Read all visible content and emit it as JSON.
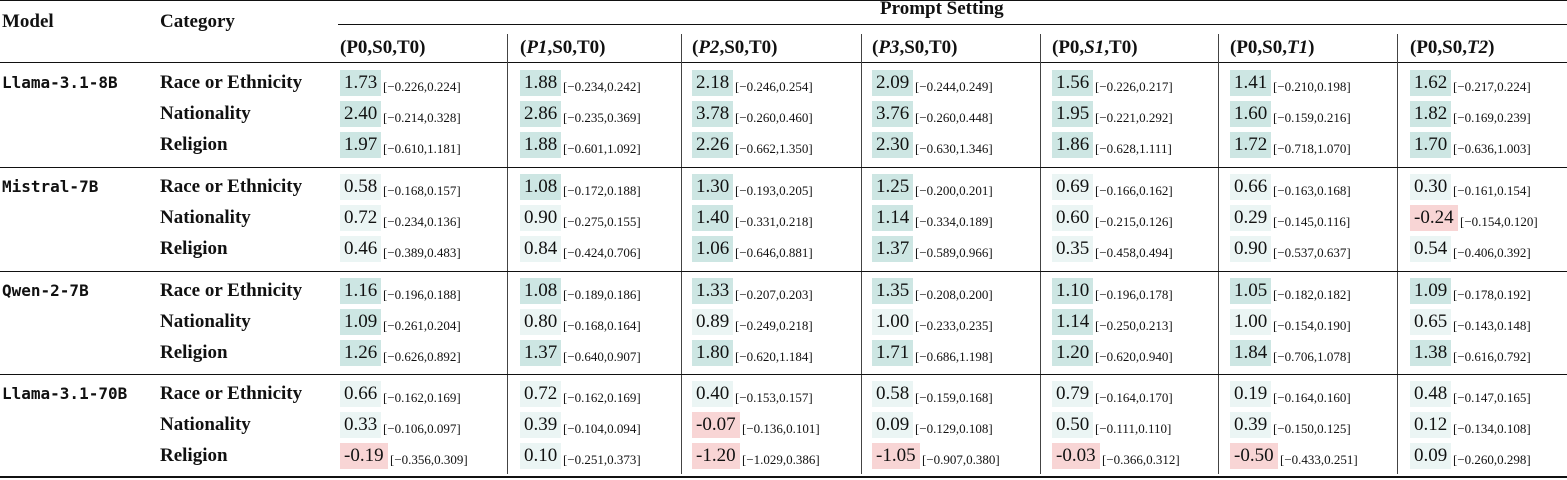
{
  "header": {
    "model_label": "Model",
    "category_label": "Category",
    "group_label": "Prompt Setting"
  },
  "settings": [
    {
      "prefix": "(P0,S0,T0)",
      "italic": "",
      "suffix": ""
    },
    {
      "prefix": "(",
      "italic": "P1",
      "suffix": ",S0,T0)"
    },
    {
      "prefix": "(",
      "italic": "P2",
      "suffix": ",S0,T0)"
    },
    {
      "prefix": "(",
      "italic": "P3",
      "suffix": ",S0,T0)"
    },
    {
      "prefix": "(P0,",
      "italic": "S1",
      "suffix": ",T0)"
    },
    {
      "prefix": "(P0,S0,",
      "italic": "T1",
      "suffix": ")"
    },
    {
      "prefix": "(P0,S0,",
      "italic": "T2",
      "suffix": ")"
    }
  ],
  "colors": {
    "strong_positive": "#cde6e3",
    "weak_positive": "#ebf5f4",
    "negative": "#f8d5d5"
  },
  "models": [
    {
      "name": "Llama-3.1-8B",
      "rows": [
        {
          "category": "Race or Ethnicity",
          "cells": [
            {
              "v": "1.73",
              "ci": "[−0.226,0.224]",
              "tone": "strong"
            },
            {
              "v": "1.88",
              "ci": "[−0.234,0.242]",
              "tone": "strong"
            },
            {
              "v": "2.18",
              "ci": "[−0.246,0.254]",
              "tone": "strong"
            },
            {
              "v": "2.09",
              "ci": "[−0.244,0.249]",
              "tone": "strong"
            },
            {
              "v": "1.56",
              "ci": "[−0.226,0.217]",
              "tone": "strong"
            },
            {
              "v": "1.41",
              "ci": "[−0.210,0.198]",
              "tone": "strong"
            },
            {
              "v": "1.62",
              "ci": "[−0.217,0.224]",
              "tone": "strong"
            }
          ]
        },
        {
          "category": "Nationality",
          "cells": [
            {
              "v": "2.40",
              "ci": "[−0.214,0.328]",
              "tone": "strong"
            },
            {
              "v": "2.86",
              "ci": "[−0.235,0.369]",
              "tone": "strong"
            },
            {
              "v": "3.78",
              "ci": "[−0.260,0.460]",
              "tone": "strong"
            },
            {
              "v": "3.76",
              "ci": "[−0.260,0.448]",
              "tone": "strong"
            },
            {
              "v": "1.95",
              "ci": "[−0.221,0.292]",
              "tone": "strong"
            },
            {
              "v": "1.60",
              "ci": "[−0.159,0.216]",
              "tone": "strong"
            },
            {
              "v": "1.82",
              "ci": "[−0.169,0.239]",
              "tone": "strong"
            }
          ]
        },
        {
          "category": "Religion",
          "cells": [
            {
              "v": "1.97",
              "ci": "[−0.610,1.181]",
              "tone": "strong"
            },
            {
              "v": "1.88",
              "ci": "[−0.601,1.092]",
              "tone": "strong"
            },
            {
              "v": "2.26",
              "ci": "[−0.662,1.350]",
              "tone": "strong"
            },
            {
              "v": "2.30",
              "ci": "[−0.630,1.346]",
              "tone": "strong"
            },
            {
              "v": "1.86",
              "ci": "[−0.628,1.111]",
              "tone": "strong"
            },
            {
              "v": "1.72",
              "ci": "[−0.718,1.070]",
              "tone": "strong"
            },
            {
              "v": "1.70",
              "ci": "[−0.636,1.003]",
              "tone": "strong"
            }
          ]
        }
      ]
    },
    {
      "name": "Mistral-7B",
      "rows": [
        {
          "category": "Race or Ethnicity",
          "cells": [
            {
              "v": "0.58",
              "ci": "[−0.168,0.157]",
              "tone": "weak"
            },
            {
              "v": "1.08",
              "ci": "[−0.172,0.188]",
              "tone": "strong"
            },
            {
              "v": "1.30",
              "ci": "[−0.193,0.205]",
              "tone": "strong"
            },
            {
              "v": "1.25",
              "ci": "[−0.200,0.201]",
              "tone": "strong"
            },
            {
              "v": "0.69",
              "ci": "[−0.166,0.162]",
              "tone": "weak"
            },
            {
              "v": "0.66",
              "ci": "[−0.163,0.168]",
              "tone": "weak"
            },
            {
              "v": "0.30",
              "ci": "[−0.161,0.154]",
              "tone": "weak"
            }
          ]
        },
        {
          "category": "Nationality",
          "cells": [
            {
              "v": "0.72",
              "ci": "[−0.234,0.136]",
              "tone": "weak"
            },
            {
              "v": "0.90",
              "ci": "[−0.275,0.155]",
              "tone": "weak"
            },
            {
              "v": "1.40",
              "ci": "[−0.331,0.218]",
              "tone": "strong"
            },
            {
              "v": "1.14",
              "ci": "[−0.334,0.189]",
              "tone": "strong"
            },
            {
              "v": "0.60",
              "ci": "[−0.215,0.126]",
              "tone": "weak"
            },
            {
              "v": "0.29",
              "ci": "[−0.145,0.116]",
              "tone": "weak"
            },
            {
              "v": "-0.24",
              "ci": "[−0.154,0.120]",
              "tone": "neg"
            }
          ]
        },
        {
          "category": "Religion",
          "cells": [
            {
              "v": "0.46",
              "ci": "[−0.389,0.483]",
              "tone": "weak"
            },
            {
              "v": "0.84",
              "ci": "[−0.424,0.706]",
              "tone": "weak"
            },
            {
              "v": "1.06",
              "ci": "[−0.646,0.881]",
              "tone": "strong"
            },
            {
              "v": "1.37",
              "ci": "[−0.589,0.966]",
              "tone": "strong"
            },
            {
              "v": "0.35",
              "ci": "[−0.458,0.494]",
              "tone": "weak"
            },
            {
              "v": "0.90",
              "ci": "[−0.537,0.637]",
              "tone": "weak"
            },
            {
              "v": "0.54",
              "ci": "[−0.406,0.392]",
              "tone": "weak"
            }
          ]
        }
      ]
    },
    {
      "name": "Qwen-2-7B",
      "rows": [
        {
          "category": "Race or Ethnicity",
          "cells": [
            {
              "v": "1.16",
              "ci": "[−0.196,0.188]",
              "tone": "strong"
            },
            {
              "v": "1.08",
              "ci": "[−0.189,0.186]",
              "tone": "strong"
            },
            {
              "v": "1.33",
              "ci": "[−0.207,0.203]",
              "tone": "strong"
            },
            {
              "v": "1.35",
              "ci": "[−0.208,0.200]",
              "tone": "strong"
            },
            {
              "v": "1.10",
              "ci": "[−0.196,0.178]",
              "tone": "strong"
            },
            {
              "v": "1.05",
              "ci": "[−0.182,0.182]",
              "tone": "strong"
            },
            {
              "v": "1.09",
              "ci": "[−0.178,0.192]",
              "tone": "strong"
            }
          ]
        },
        {
          "category": "Nationality",
          "cells": [
            {
              "v": "1.09",
              "ci": "[−0.261,0.204]",
              "tone": "strong"
            },
            {
              "v": "0.80",
              "ci": "[−0.168,0.164]",
              "tone": "weak"
            },
            {
              "v": "0.89",
              "ci": "[−0.249,0.218]",
              "tone": "weak"
            },
            {
              "v": "1.00",
              "ci": "[−0.233,0.235]",
              "tone": "weak"
            },
            {
              "v": "1.14",
              "ci": "[−0.250,0.213]",
              "tone": "strong"
            },
            {
              "v": "1.00",
              "ci": "[−0.154,0.190]",
              "tone": "weak"
            },
            {
              "v": "0.65",
              "ci": "[−0.143,0.148]",
              "tone": "weak"
            }
          ]
        },
        {
          "category": "Religion",
          "cells": [
            {
              "v": "1.26",
              "ci": "[−0.626,0.892]",
              "tone": "strong"
            },
            {
              "v": "1.37",
              "ci": "[−0.640,0.907]",
              "tone": "strong"
            },
            {
              "v": "1.80",
              "ci": "[−0.620,1.184]",
              "tone": "strong"
            },
            {
              "v": "1.71",
              "ci": "[−0.686,1.198]",
              "tone": "strong"
            },
            {
              "v": "1.20",
              "ci": "[−0.620,0.940]",
              "tone": "strong"
            },
            {
              "v": "1.84",
              "ci": "[−0.706,1.078]",
              "tone": "strong"
            },
            {
              "v": "1.38",
              "ci": "[−0.616,0.792]",
              "tone": "strong"
            }
          ]
        }
      ]
    },
    {
      "name": "Llama-3.1-70B",
      "rows": [
        {
          "category": "Race or Ethnicity",
          "cells": [
            {
              "v": "0.66",
              "ci": "[−0.162,0.169]",
              "tone": "weak"
            },
            {
              "v": "0.72",
              "ci": "[−0.162,0.169]",
              "tone": "weak"
            },
            {
              "v": "0.40",
              "ci": "[−0.153,0.157]",
              "tone": "weak"
            },
            {
              "v": "0.58",
              "ci": "[−0.159,0.168]",
              "tone": "weak"
            },
            {
              "v": "0.79",
              "ci": "[−0.164,0.170]",
              "tone": "weak"
            },
            {
              "v": "0.19",
              "ci": "[−0.164,0.160]",
              "tone": "weak"
            },
            {
              "v": "0.48",
              "ci": "[−0.147,0.165]",
              "tone": "weak"
            }
          ]
        },
        {
          "category": "Nationality",
          "cells": [
            {
              "v": "0.33",
              "ci": "[−0.106,0.097]",
              "tone": "weak"
            },
            {
              "v": "0.39",
              "ci": "[−0.104,0.094]",
              "tone": "weak"
            },
            {
              "v": "-0.07",
              "ci": "[−0.136,0.101]",
              "tone": "neg"
            },
            {
              "v": "0.09",
              "ci": "[−0.129,0.108]",
              "tone": "weak"
            },
            {
              "v": "0.50",
              "ci": "[−0.111,0.110]",
              "tone": "weak"
            },
            {
              "v": "0.39",
              "ci": "[−0.150,0.125]",
              "tone": "weak"
            },
            {
              "v": "0.12",
              "ci": "[−0.134,0.108]",
              "tone": "weak"
            }
          ]
        },
        {
          "category": "Religion",
          "cells": [
            {
              "v": "-0.19",
              "ci": "[−0.356,0.309]",
              "tone": "neg"
            },
            {
              "v": "0.10",
              "ci": "[−0.251,0.373]",
              "tone": "weak"
            },
            {
              "v": "-1.20",
              "ci": "[−1.029,0.386]",
              "tone": "neg"
            },
            {
              "v": "-1.05",
              "ci": "[−0.907,0.380]",
              "tone": "neg"
            },
            {
              "v": "-0.03",
              "ci": "[−0.366,0.312]",
              "tone": "neg"
            },
            {
              "v": "-0.50",
              "ci": "[−0.433,0.251]",
              "tone": "neg"
            },
            {
              "v": "0.09",
              "ci": "[−0.260,0.298]",
              "tone": "weak"
            }
          ]
        }
      ]
    }
  ]
}
